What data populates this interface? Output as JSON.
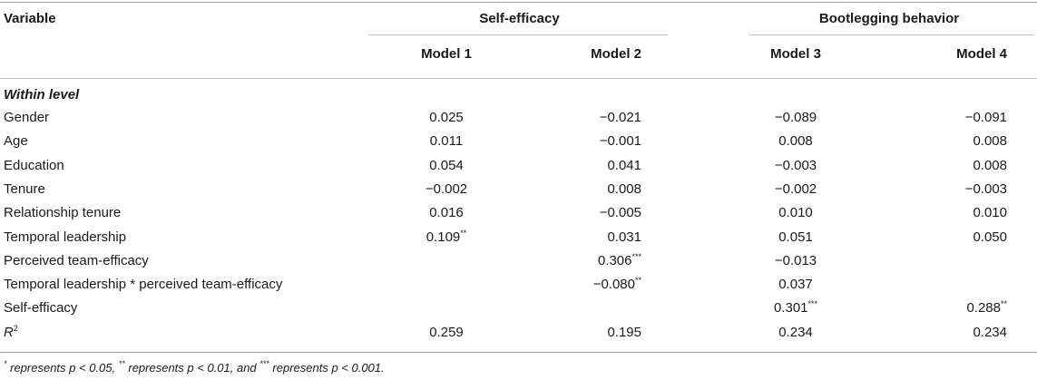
{
  "header": {
    "variable_label": "Variable",
    "group_self_efficacy": "Self-efficacy",
    "group_bootlegging": "Bootlegging behavior",
    "model1": "Model 1",
    "model2": "Model 2",
    "model3": "Model 3",
    "model4": "Model 4"
  },
  "section_label": "Within level",
  "rows": [
    {
      "label": "Gender",
      "m1": "0.025",
      "m2": "−0.021",
      "m3": "−0.089",
      "m4": "−0.091"
    },
    {
      "label": "Age",
      "m1": "0.011",
      "m2": "−0.001",
      "m3": "0.008",
      "m4": "0.008"
    },
    {
      "label": "Education",
      "m1": "0.054",
      "m2": "0.041",
      "m3": "−0.003",
      "m4": "0.008"
    },
    {
      "label": "Tenure",
      "m1": "−0.002",
      "m2": "0.008",
      "m3": "−0.002",
      "m4": "−0.003"
    },
    {
      "label": "Relationship tenure",
      "m1": "0.016",
      "m2": "−0.005",
      "m3": "0.010",
      "m4": "0.010"
    },
    {
      "label": "Temporal leadership",
      "m1": "0.109",
      "m1_sup": "**",
      "m2": "0.031",
      "m3": "0.051",
      "m4": "0.050"
    },
    {
      "label": "Perceived team-efficacy",
      "m1": "",
      "m2": "0.306",
      "m2_sup": "***",
      "m3": "−0.013",
      "m4": ""
    },
    {
      "label": "Temporal leadership * perceived team-efficacy",
      "m1": "",
      "m2": "−0.080",
      "m2_sup": "**",
      "m3": "0.037",
      "m4": ""
    },
    {
      "label": "Self-efficacy",
      "m1": "",
      "m2": "",
      "m3": "0.301",
      "m3_sup": "***",
      "m4": "0.288",
      "m4_sup": "**"
    },
    {
      "label": "R",
      "label_sup": "2",
      "m1": "0.259",
      "m2": "0.195",
      "m3": "0.234",
      "m4": "0.234"
    }
  ],
  "footnote": {
    "star1": "*",
    "text1": " represents p < 0.05, ",
    "star2": "**",
    "text2": " represents p < 0.01, and ",
    "star3": "***",
    "text3": " represents p < 0.001."
  }
}
